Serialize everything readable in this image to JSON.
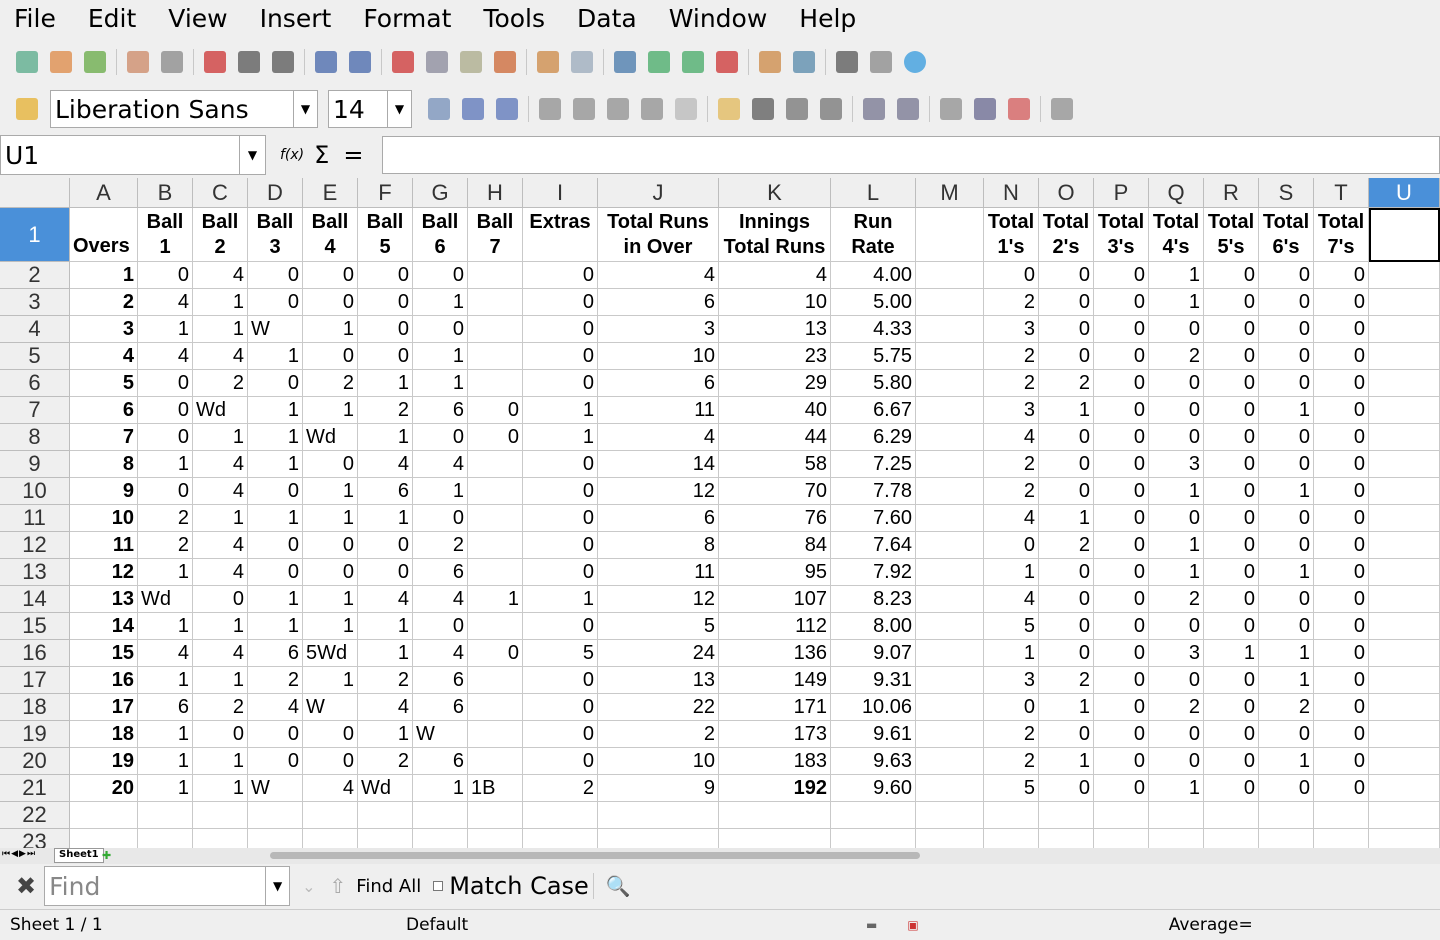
{
  "menu": [
    "File",
    "Edit",
    "View",
    "Insert",
    "Format",
    "Tools",
    "Data",
    "Window",
    "Help"
  ],
  "toolbar1": [
    "new-icon",
    "open-icon",
    "save-icon",
    "export-icon",
    "edit-file-icon",
    "export-pdf-icon",
    "print-icon",
    "print-preview-icon",
    "spellcheck-icon",
    "autospellcheck-icon",
    "cut-icon",
    "copy-icon",
    "paste-icon",
    "clone-formatting-icon",
    "undo-icon",
    "redo-icon",
    "navigator-icon",
    "sort-ascending-icon",
    "sort-descending-icon",
    "chart-icon",
    "draw-functions-icon",
    "gallery-icon",
    "datasource-icon",
    "styles-icon",
    "help-icon"
  ],
  "font": {
    "name": "Liberation Sans",
    "size": "14"
  },
  "toolbar2": [
    "bold-icon",
    "italic-icon",
    "underline-icon",
    "align-left-icon",
    "align-center-icon",
    "align-right-icon",
    "justify-icon",
    "merge-cells-icon",
    "currency-icon",
    "percent-icon",
    "add-decimal-icon",
    "delete-decimal-icon",
    "decrease-indent-icon",
    "increase-indent-icon",
    "borders-icon",
    "border-style-icon",
    "background-color-icon",
    "show-grid-icon"
  ],
  "formula": {
    "cell_ref": "U1",
    "fx": "f(x)",
    "sum": "Σ",
    "equals": "=",
    "value": ""
  },
  "columns": [
    "A",
    "B",
    "C",
    "D",
    "E",
    "F",
    "G",
    "H",
    "I",
    "J",
    "K",
    "L",
    "M",
    "N",
    "O",
    "P",
    "Q",
    "R",
    "S",
    "T",
    "U"
  ],
  "headers": [
    "Overs",
    "Ball 1",
    "Ball 2",
    "Ball 3",
    "Ball 4",
    "Ball 5",
    "Ball 6",
    "Ball 7",
    "Extras",
    "Total Runs in Over",
    "Innings Total Runs",
    "Run Rate",
    "",
    "Total 1's",
    "Total 2's",
    "Total 3's",
    "Total 4's",
    "Total 5's",
    "Total 6's",
    "Total 7's",
    ""
  ],
  "rows": [
    [
      "1",
      "0",
      "4",
      "0",
      "0",
      "0",
      "0",
      "",
      "0",
      "4",
      "4",
      "4.00",
      "",
      "0",
      "0",
      "0",
      "1",
      "0",
      "0",
      "0"
    ],
    [
      "2",
      "4",
      "1",
      "0",
      "0",
      "0",
      "1",
      "",
      "0",
      "6",
      "10",
      "5.00",
      "",
      "2",
      "0",
      "0",
      "1",
      "0",
      "0",
      "0"
    ],
    [
      "3",
      "1",
      "1",
      "W",
      "1",
      "0",
      "0",
      "",
      "0",
      "3",
      "13",
      "4.33",
      "",
      "3",
      "0",
      "0",
      "0",
      "0",
      "0",
      "0"
    ],
    [
      "4",
      "4",
      "4",
      "1",
      "0",
      "0",
      "1",
      "",
      "0",
      "10",
      "23",
      "5.75",
      "",
      "2",
      "0",
      "0",
      "2",
      "0",
      "0",
      "0"
    ],
    [
      "5",
      "0",
      "2",
      "0",
      "2",
      "1",
      "1",
      "",
      "0",
      "6",
      "29",
      "5.80",
      "",
      "2",
      "2",
      "0",
      "0",
      "0",
      "0",
      "0"
    ],
    [
      "6",
      "0",
      "Wd",
      "1",
      "1",
      "2",
      "6",
      "0",
      "1",
      "11",
      "40",
      "6.67",
      "",
      "3",
      "1",
      "0",
      "0",
      "0",
      "1",
      "0"
    ],
    [
      "7",
      "0",
      "1",
      "1",
      "Wd",
      "1",
      "0",
      "0",
      "1",
      "4",
      "44",
      "6.29",
      "",
      "4",
      "0",
      "0",
      "0",
      "0",
      "0",
      "0"
    ],
    [
      "8",
      "1",
      "4",
      "1",
      "0",
      "4",
      "4",
      "",
      "0",
      "14",
      "58",
      "7.25",
      "",
      "2",
      "0",
      "0",
      "3",
      "0",
      "0",
      "0"
    ],
    [
      "9",
      "0",
      "4",
      "0",
      "1",
      "6",
      "1",
      "",
      "0",
      "12",
      "70",
      "7.78",
      "",
      "2",
      "0",
      "0",
      "1",
      "0",
      "1",
      "0"
    ],
    [
      "10",
      "2",
      "1",
      "1",
      "1",
      "1",
      "0",
      "",
      "0",
      "6",
      "76",
      "7.60",
      "",
      "4",
      "1",
      "0",
      "0",
      "0",
      "0",
      "0"
    ],
    [
      "11",
      "2",
      "4",
      "0",
      "0",
      "0",
      "2",
      "",
      "0",
      "8",
      "84",
      "7.64",
      "",
      "0",
      "2",
      "0",
      "1",
      "0",
      "0",
      "0"
    ],
    [
      "12",
      "1",
      "4",
      "0",
      "0",
      "0",
      "6",
      "",
      "0",
      "11",
      "95",
      "7.92",
      "",
      "1",
      "0",
      "0",
      "1",
      "0",
      "1",
      "0"
    ],
    [
      "13",
      "Wd",
      "0",
      "1",
      "1",
      "4",
      "4",
      "1",
      "1",
      "12",
      "107",
      "8.23",
      "",
      "4",
      "0",
      "0",
      "2",
      "0",
      "0",
      "0"
    ],
    [
      "14",
      "1",
      "1",
      "1",
      "1",
      "1",
      "0",
      "",
      "0",
      "5",
      "112",
      "8.00",
      "",
      "5",
      "0",
      "0",
      "0",
      "0",
      "0",
      "0"
    ],
    [
      "15",
      "4",
      "4",
      "6",
      "5Wd",
      "1",
      "4",
      "0",
      "5",
      "24",
      "136",
      "9.07",
      "",
      "1",
      "0",
      "0",
      "3",
      "1",
      "1",
      "0"
    ],
    [
      "16",
      "1",
      "1",
      "2",
      "1",
      "2",
      "6",
      "",
      "0",
      "13",
      "149",
      "9.31",
      "",
      "3",
      "2",
      "0",
      "0",
      "0",
      "1",
      "0"
    ],
    [
      "17",
      "6",
      "2",
      "4",
      "W",
      "4",
      "6",
      "",
      "0",
      "22",
      "171",
      "10.06",
      "",
      "0",
      "1",
      "0",
      "2",
      "0",
      "2",
      "0"
    ],
    [
      "18",
      "1",
      "0",
      "0",
      "0",
      "1",
      "W",
      "",
      "0",
      "2",
      "173",
      "9.61",
      "",
      "2",
      "0",
      "0",
      "0",
      "0",
      "0",
      "0"
    ],
    [
      "19",
      "1",
      "1",
      "0",
      "0",
      "2",
      "6",
      "",
      "0",
      "10",
      "183",
      "9.63",
      "",
      "2",
      "1",
      "0",
      "0",
      "0",
      "1",
      "0"
    ],
    [
      "20",
      "1",
      "1",
      "W",
      "4",
      "Wd",
      "1",
      "1B",
      "2",
      "9",
      "192",
      "9.60",
      "",
      "5",
      "0",
      "0",
      "1",
      "0",
      "0",
      "0"
    ]
  ],
  "sheet_tab": "Sheet1",
  "find": {
    "placeholder": "Find",
    "find_all": "Find All",
    "match_case": "Match Case"
  },
  "status": {
    "sheet": "Sheet 1 / 1",
    "style": "Default",
    "average": "Average="
  }
}
